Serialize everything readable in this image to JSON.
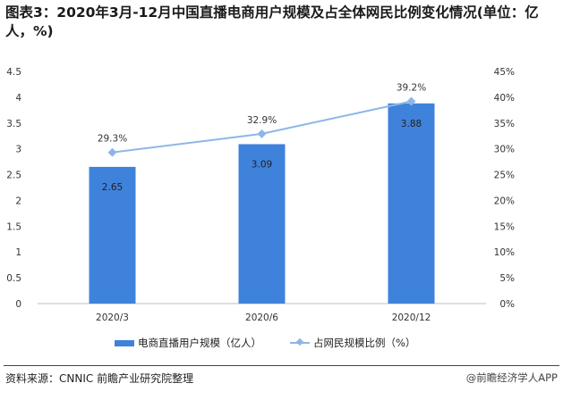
{
  "title": "图表3：2020年3月-12月中国直播电商用户规模及占全体网民比例变化情况(单位：亿人，%)",
  "chart_data": {
    "type": "bar+line",
    "categories": [
      "2020/3",
      "2020/6",
      "2020/12"
    ],
    "series": [
      {
        "name": "电商直播用户规模（亿人）",
        "type": "bar",
        "axis": "left",
        "values": [
          2.65,
          3.09,
          3.88
        ],
        "labels": [
          "2.65",
          "3.09",
          "3.88"
        ],
        "color": "#3f82dc"
      },
      {
        "name": "占网民规模比例（%）",
        "type": "line",
        "axis": "right",
        "values": [
          29.3,
          32.9,
          39.2
        ],
        "labels": [
          "29.3%",
          "32.9%",
          "39.2%"
        ],
        "color": "#8db6e8"
      }
    ],
    "y_left": {
      "ylim": [
        0,
        4.5
      ],
      "ticks": [
        "0",
        "0.5",
        "1",
        "1.5",
        "2",
        "2.5",
        "3",
        "3.5",
        "4",
        "4.5"
      ]
    },
    "y_right": {
      "ylim": [
        0,
        45
      ],
      "ticks": [
        "0%",
        "5%",
        "10%",
        "15%",
        "20%",
        "25%",
        "30%",
        "35%",
        "40%",
        "45%"
      ]
    },
    "grid": false,
    "legend": "bottom"
  },
  "source": "资料来源：CNNIC 前瞻产业研究院整理",
  "brand": "@前瞻经济学人APP"
}
